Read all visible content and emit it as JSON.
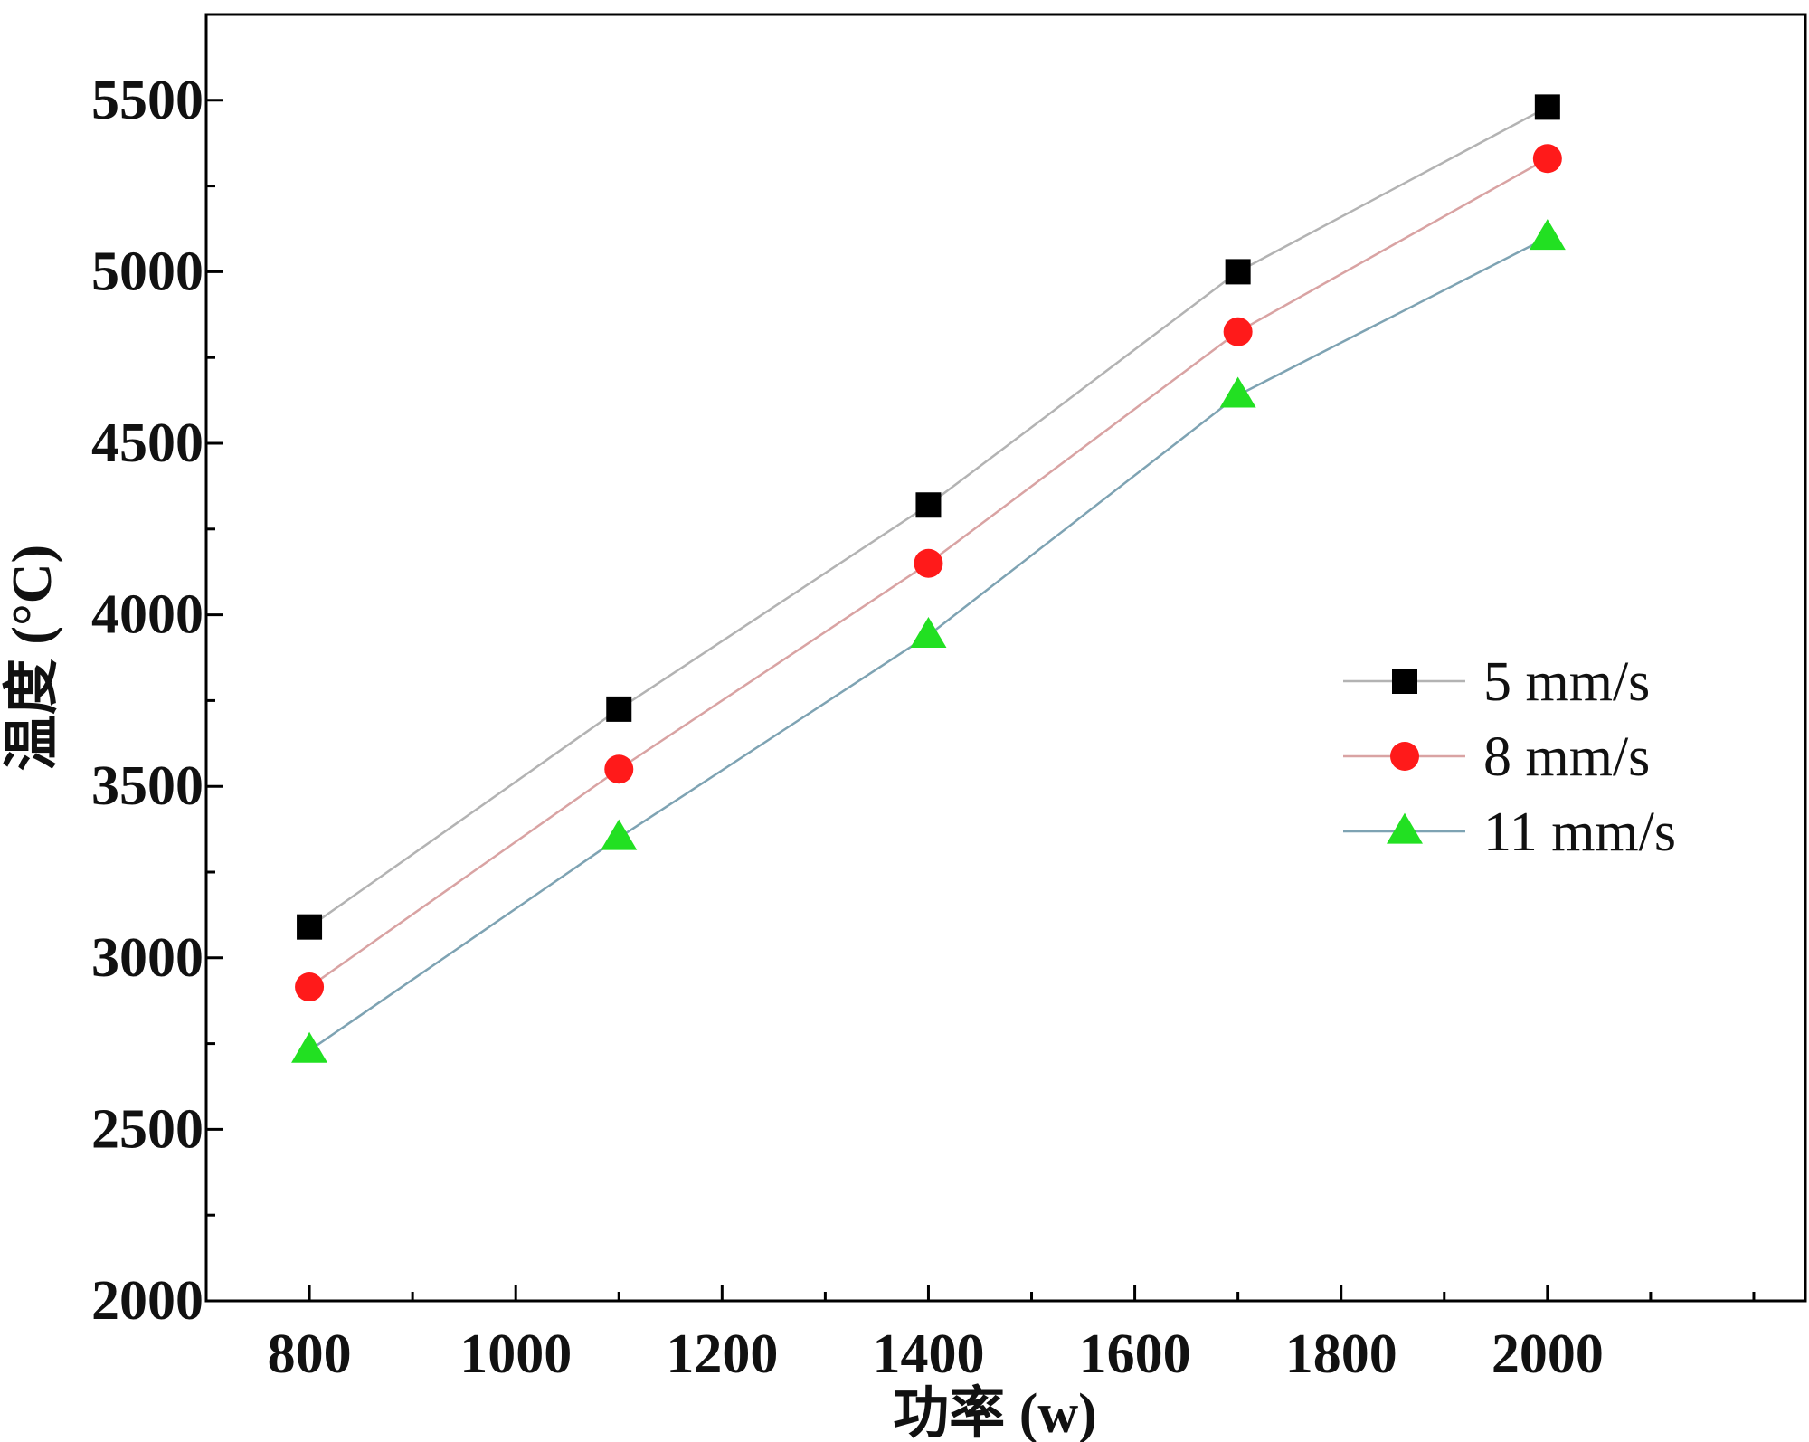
{
  "chart_data": {
    "type": "line",
    "title": "",
    "xlabel": "功率 (w)",
    "ylabel": "温度 (°C)",
    "xlim": [
      700,
      2250
    ],
    "ylim": [
      2000,
      5750
    ],
    "xticks": [
      800,
      1000,
      1200,
      1400,
      1600,
      1800,
      2000
    ],
    "yticks": [
      2000,
      2500,
      3000,
      3500,
      4000,
      4500,
      5000,
      5500
    ],
    "x": [
      800,
      1100,
      1400,
      1700,
      2000
    ],
    "series": [
      {
        "name": "5 mm/s",
        "marker": "square",
        "marker_color": "#000000",
        "line_color": "#b3b3b3",
        "values": [
          3090,
          3725,
          4320,
          5000,
          5480
        ]
      },
      {
        "name": "8 mm/s",
        "marker": "circle",
        "marker_color": "#ff1a1a",
        "line_color": "#d9a3a3",
        "values": [
          2915,
          3550,
          4150,
          4825,
          5330
        ]
      },
      {
        "name": "11 mm/s",
        "marker": "triangle",
        "marker_color": "#22e022",
        "line_color": "#7ea3b3",
        "values": [
          2730,
          3350,
          3940,
          4640,
          5100
        ]
      }
    ],
    "legend_position": "right-middle",
    "grid": false
  }
}
